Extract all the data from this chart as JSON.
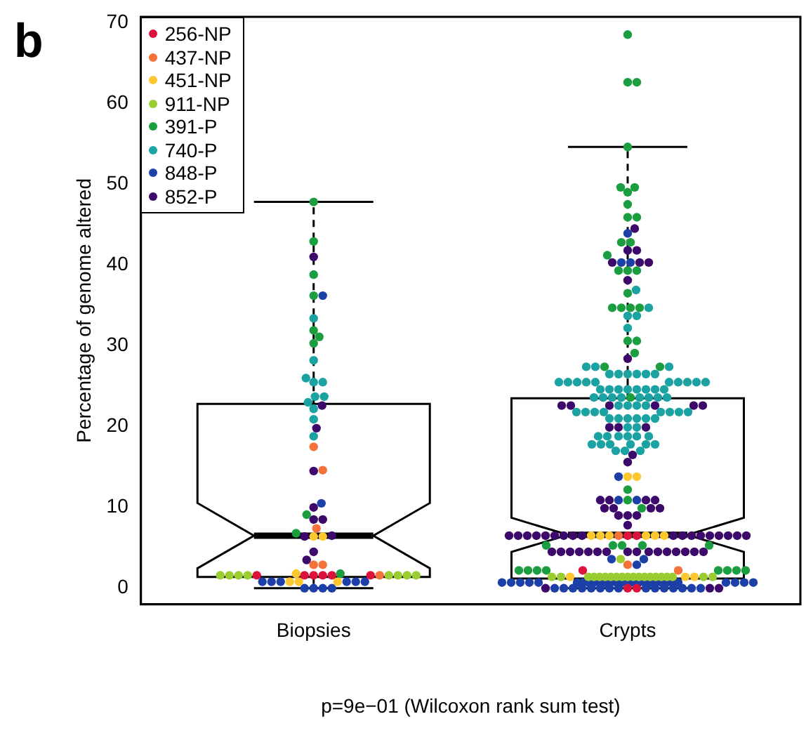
{
  "chart_data": {
    "type": "box",
    "categories": [
      "Biopsies",
      "Crypts"
    ],
    "ylabel": "Percentage of genome altered",
    "xlabel": "p=9e−01 (Wilcoxon rank sum test)",
    "annotations": [
      "b"
    ],
    "ylim": [
      -2,
      70.7
    ],
    "yticks": [
      0,
      10,
      20,
      30,
      40,
      50,
      60,
      70
    ],
    "grid": false,
    "legend": "top left",
    "marker": "circle",
    "boxes": [
      {
        "low": 0,
        "q1": 1.4,
        "median": 6.5,
        "q3": 22.8,
        "high": 47.8
      },
      {
        "low": 0,
        "q1": 1.2,
        "median": 6.6,
        "q3": 23.5,
        "high": 54.6
      }
    ],
    "series": [
      {
        "name": "256-NP",
        "type": "scatter",
        "color": "#dc143c",
        "x": [
          "Biopsies",
          "Biopsies",
          "Biopsies",
          "Biopsies",
          "Biopsies",
          "Biopsies",
          "Crypts",
          "Crypts",
          "Crypts",
          "Crypts",
          "Crypts"
        ],
        "values": [
          1.6,
          1.6,
          1.6,
          1.6,
          1.6,
          1.6,
          6.5,
          6.5,
          2.2,
          0,
          0
        ]
      },
      {
        "name": "437-NP",
        "type": "scatter",
        "color": "#f4713a",
        "x": [
          "Biopsies",
          "Biopsies",
          "Biopsies",
          "Biopsies",
          "Biopsies",
          "Biopsies",
          "Crypts",
          "Crypts",
          "Crypts"
        ],
        "values": [
          17.5,
          14.6,
          7.4,
          2.9,
          2.9,
          1.6,
          6.5,
          2.9,
          2.2
        ]
      },
      {
        "name": "451-NP",
        "type": "scatter",
        "color": "#fdc82f",
        "x": [
          "Biopsies",
          "Biopsies",
          "Biopsies",
          "Biopsies",
          "Biopsies",
          "Biopsies",
          "Crypts",
          "Crypts",
          "Crypts",
          "Crypts",
          "Crypts",
          "Crypts",
          "Crypts",
          "Crypts",
          "Crypts",
          "Crypts",
          "Crypts"
        ],
        "values": [
          6.4,
          6.4,
          1.8,
          0.8,
          0.8,
          0.8,
          13.8,
          13.8,
          6.5,
          6.5,
          6.5,
          6.5,
          6.5,
          6.5,
          1.4,
          1.4,
          1.4
        ]
      },
      {
        "name": "911-NP",
        "type": "scatter",
        "color": "#9acd32",
        "x": [
          "Biopsies",
          "Biopsies",
          "Biopsies",
          "Biopsies",
          "Biopsies",
          "Biopsies",
          "Biopsies",
          "Biopsies",
          "Crypts",
          "Crypts",
          "Crypts",
          "Crypts",
          "Crypts",
          "Crypts",
          "Crypts",
          "Crypts",
          "Crypts",
          "Crypts",
          "Crypts",
          "Crypts",
          "Crypts",
          "Crypts",
          "Crypts",
          "Crypts",
          "Crypts",
          "Crypts",
          "Crypts",
          "Crypts",
          "Crypts"
        ],
        "values": [
          1.6,
          1.6,
          1.6,
          1.6,
          1.6,
          1.6,
          1.6,
          1.6,
          3.6,
          1.4,
          1.4,
          1.4,
          1.4,
          1.4,
          1.4,
          1.4,
          1.4,
          1.4,
          1.4,
          1.4,
          1.4,
          1.4,
          1.4,
          1.4,
          1.4,
          1.4,
          1.4,
          1.4,
          1.4
        ]
      },
      {
        "name": "391-P",
        "type": "scatter",
        "color": "#1a9e3f",
        "x": [
          "Biopsies",
          "Biopsies",
          "Biopsies",
          "Biopsies",
          "Biopsies",
          "Biopsies",
          "Biopsies",
          "Biopsies",
          "Biopsies",
          "Biopsies",
          "Crypts",
          "Crypts",
          "Crypts",
          "Crypts",
          "Crypts",
          "Crypts",
          "Crypts",
          "Crypts",
          "Crypts",
          "Crypts",
          "Crypts",
          "Crypts",
          "Crypts",
          "Crypts",
          "Crypts",
          "Crypts",
          "Crypts",
          "Crypts",
          "Crypts",
          "Crypts",
          "Crypts",
          "Crypts",
          "Crypts",
          "Crypts",
          "Crypts",
          "Crypts",
          "Crypts",
          "Crypts",
          "Crypts",
          "Crypts",
          "Crypts",
          "Crypts",
          "Crypts",
          "Crypts",
          "Crypts",
          "Crypts",
          "Crypts",
          "Crypts",
          "Crypts",
          "Crypts",
          "Crypts",
          "Crypts",
          "Crypts"
        ],
        "values": [
          47.8,
          42.9,
          38.8,
          36.2,
          31.9,
          31.1,
          30.3,
          9.1,
          6.8,
          1.8,
          68.5,
          62.6,
          62.6,
          54.6,
          49.6,
          49.6,
          49.0,
          47.5,
          45.9,
          45.9,
          42.8,
          42.8,
          41.2,
          39.3,
          39.3,
          39.3,
          36.5,
          34.7,
          34.7,
          34.7,
          34.7,
          30.6,
          30.6,
          29.1,
          27.4,
          27.4,
          23.6,
          12.2,
          10.9,
          9.9,
          5.3,
          5.3,
          5.3,
          5.3,
          5.3,
          2.2,
          2.2,
          2.2,
          2.2,
          2.2,
          2.2,
          2.2,
          2.2
        ]
      },
      {
        "name": "740-P",
        "type": "scatter",
        "color": "#1ba3a3",
        "x": [
          "Biopsies",
          "Biopsies",
          "Biopsies",
          "Biopsies",
          "Biopsies",
          "Biopsies",
          "Biopsies",
          "Biopsies",
          "Biopsies",
          "Biopsies",
          "Biopsies",
          "Crypts",
          "Crypts",
          "Crypts",
          "Crypts",
          "Crypts",
          "Crypts",
          "Crypts",
          "Crypts",
          "Crypts",
          "Crypts",
          "Crypts",
          "Crypts",
          "Crypts",
          "Crypts",
          "Crypts",
          "Crypts",
          "Crypts",
          "Crypts",
          "Crypts",
          "Crypts",
          "Crypts",
          "Crypts",
          "Crypts",
          "Crypts",
          "Crypts",
          "Crypts",
          "Crypts",
          "Crypts",
          "Crypts",
          "Crypts",
          "Crypts",
          "Crypts",
          "Crypts",
          "Crypts",
          "Crypts",
          "Crypts",
          "Crypts",
          "Crypts",
          "Crypts",
          "Crypts",
          "Crypts",
          "Crypts",
          "Crypts",
          "Crypts",
          "Crypts",
          "Crypts",
          "Crypts",
          "Crypts",
          "Crypts",
          "Crypts",
          "Crypts",
          "Crypts",
          "Crypts",
          "Crypts",
          "Crypts",
          "Crypts",
          "Crypts",
          "Crypts",
          "Crypts",
          "Crypts",
          "Crypts",
          "Crypts",
          "Crypts",
          "Crypts",
          "Crypts",
          "Crypts",
          "Crypts",
          "Crypts",
          "Crypts",
          "Crypts",
          "Crypts",
          "Crypts",
          "Crypts",
          "Crypts",
          "Crypts"
        ],
        "values": [
          33.4,
          28.2,
          26.0,
          25.5,
          25.5,
          23.7,
          23.7,
          23.0,
          22.2,
          20.9,
          18.8,
          36.9,
          34.7,
          33.7,
          33.7,
          32.2,
          27.4,
          27.4,
          27.4,
          26.5,
          26.5,
          26.5,
          26.5,
          26.5,
          26.5,
          25.5,
          25.5,
          25.5,
          25.5,
          25.5,
          25.5,
          25.5,
          25.5,
          25.5,
          25.5,
          24.6,
          24.6,
          24.6,
          24.6,
          24.6,
          24.6,
          24.6,
          24.6,
          23.6,
          23.6,
          23.6,
          23.6,
          23.6,
          23.6,
          23.6,
          23.6,
          22.6,
          22.6,
          22.6,
          22.6,
          21.8,
          21.8,
          21.8,
          21.8,
          21.8,
          21.8,
          21.8,
          21.8,
          21.0,
          21.0,
          21.0,
          21.0,
          21.0,
          21.0,
          19.9,
          19.9,
          18.8,
          18.8,
          18.8,
          18.8,
          18.8,
          18.8,
          17.8,
          17.8,
          17.8,
          17.8,
          17.8,
          17.8,
          17.0,
          17.0,
          17.0
        ]
      },
      {
        "name": "848-P",
        "type": "scatter",
        "color": "#1c3fa8",
        "x": [
          "Biopsies",
          "Biopsies",
          "Biopsies",
          "Biopsies",
          "Biopsies",
          "Biopsies",
          "Biopsies",
          "Biopsies",
          "Biopsies",
          "Biopsies",
          "Biopsies",
          "Biopsies",
          "Crypts",
          "Crypts",
          "Crypts",
          "Crypts",
          "Crypts",
          "Crypts",
          "Crypts",
          "Crypts",
          "Crypts",
          "Crypts",
          "Crypts",
          "Crypts",
          "Crypts",
          "Crypts",
          "Crypts",
          "Crypts",
          "Crypts",
          "Crypts",
          "Crypts",
          "Crypts",
          "Crypts",
          "Crypts",
          "Crypts",
          "Crypts",
          "Crypts",
          "Crypts",
          "Crypts",
          "Crypts",
          "Crypts",
          "Crypts",
          "Crypts",
          "Crypts",
          "Crypts",
          "Crypts",
          "Crypts",
          "Crypts",
          "Crypts",
          "Crypts",
          "Crypts",
          "Crypts",
          "Crypts",
          "Crypts",
          "Crypts",
          "Crypts",
          "Crypts",
          "Crypts",
          "Crypts",
          "Crypts",
          "Crypts",
          "Crypts",
          "Crypts",
          "Crypts"
        ],
        "values": [
          36.2,
          10.5,
          0.8,
          0.8,
          0.8,
          0.8,
          0.8,
          0.8,
          0,
          0,
          0,
          0,
          43.9,
          40.3,
          40.3,
          13.8,
          10.9,
          10.9,
          3.6,
          3.6,
          2.9,
          0.7,
          0.7,
          0.7,
          0.7,
          0.7,
          0.7,
          0.7,
          0.7,
          0.7,
          0.7,
          0.7,
          0.7,
          0.7,
          0.7,
          0.7,
          0.7,
          0.7,
          0.7,
          0.7,
          0.7,
          0.7,
          0.7,
          0.7,
          0.7,
          0.7,
          0.7,
          0.7,
          0.7,
          0,
          0,
          0,
          0,
          0,
          0,
          0,
          0,
          0,
          0,
          0,
          0,
          0,
          0,
          0
        ]
      },
      {
        "name": "852-P",
        "type": "scatter",
        "color": "#3d0a6b",
        "x": [
          "Biopsies",
          "Biopsies",
          "Biopsies",
          "Biopsies",
          "Biopsies",
          "Biopsies",
          "Biopsies",
          "Biopsies",
          "Biopsies",
          "Biopsies",
          "Biopsies",
          "Crypts",
          "Crypts",
          "Crypts",
          "Crypts",
          "Crypts",
          "Crypts",
          "Crypts",
          "Crypts",
          "Crypts",
          "Crypts",
          "Crypts",
          "Crypts",
          "Crypts",
          "Crypts",
          "Crypts",
          "Crypts",
          "Crypts",
          "Crypts",
          "Crypts",
          "Crypts",
          "Crypts",
          "Crypts",
          "Crypts",
          "Crypts",
          "Crypts",
          "Crypts",
          "Crypts",
          "Crypts",
          "Crypts",
          "Crypts",
          "Crypts",
          "Crypts",
          "Crypts",
          "Crypts",
          "Crypts",
          "Crypts",
          "Crypts",
          "Crypts",
          "Crypts",
          "Crypts",
          "Crypts",
          "Crypts",
          "Crypts",
          "Crypts",
          "Crypts",
          "Crypts",
          "Crypts",
          "Crypts",
          "Crypts",
          "Crypts",
          "Crypts",
          "Crypts",
          "Crypts",
          "Crypts",
          "Crypts",
          "Crypts",
          "Crypts",
          "Crypts",
          "Crypts",
          "Crypts",
          "Crypts",
          "Crypts",
          "Crypts",
          "Crypts",
          "Crypts",
          "Crypts",
          "Crypts",
          "Crypts"
        ],
        "values": [
          41.0,
          22.6,
          19.8,
          14.5,
          10.0,
          8.5,
          8.5,
          6.5,
          6.4,
          4.5,
          3.5,
          44.5,
          41.8,
          41.8,
          40.3,
          40.3,
          40.3,
          38.1,
          28.4,
          22.6,
          22.6,
          22.6,
          22.6,
          22.6,
          22.6,
          19.9,
          19.9,
          19.9,
          16.5,
          15.6,
          10.9,
          10.9,
          10.9,
          10.9,
          9.9,
          9.9,
          9.9,
          9.9,
          9.0,
          9.0,
          9.0,
          7.8,
          6.5,
          6.5,
          6.5,
          6.5,
          6.5,
          6.5,
          6.5,
          6.5,
          6.5,
          6.5,
          6.5,
          6.5,
          6.5,
          6.5,
          6.5,
          6.5,
          6.5,
          6.5,
          4.5,
          4.5,
          4.5,
          4.5,
          4.5,
          4.5,
          4.5,
          4.5,
          4.5,
          4.5,
          4.5,
          4.5,
          4.5,
          4.5,
          4.5,
          4.5,
          0,
          0,
          0
        ]
      }
    ]
  }
}
